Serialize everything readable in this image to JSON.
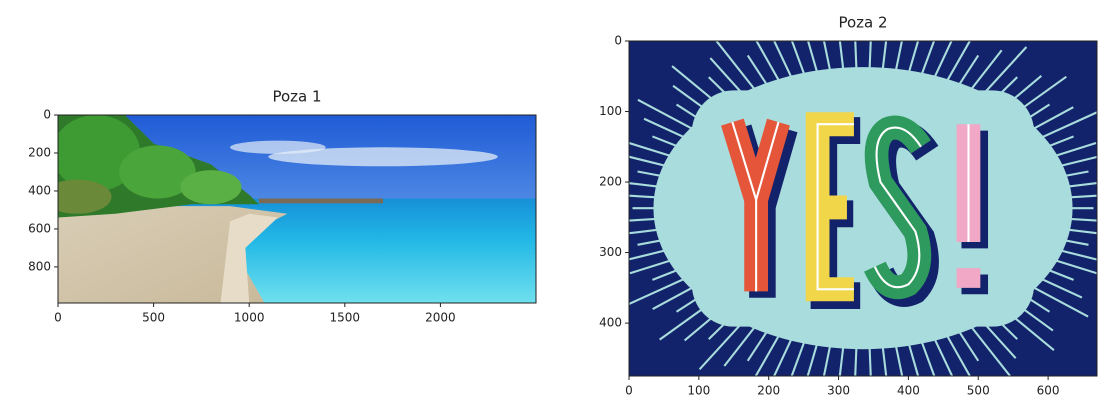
{
  "chart_data": [
    {
      "type": "image",
      "title": "Poza 1",
      "xlim": [
        0,
        2500
      ],
      "ylim": [
        990,
        0
      ],
      "xticks": [
        0,
        500,
        1000,
        1500,
        2000
      ],
      "yticks": [
        0,
        200,
        400,
        600,
        800
      ]
    },
    {
      "type": "image",
      "title": "Poza 2",
      "xlim": [
        0,
        670
      ],
      "ylim": [
        475,
        0
      ],
      "xticks": [
        0,
        100,
        200,
        300,
        400,
        500,
        600
      ],
      "yticks": [
        0,
        100,
        200,
        300,
        400
      ]
    }
  ]
}
